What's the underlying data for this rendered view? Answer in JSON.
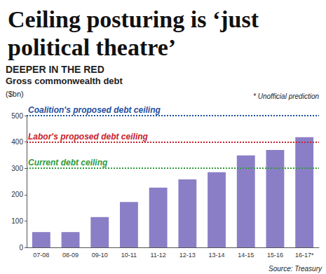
{
  "chart_data": {
    "type": "bar",
    "title": "Ceiling posturing is ‘just political theatre’",
    "subtitle": [
      "DEEPER IN THE RED",
      "Gross commonwealth debt"
    ],
    "ylabel": "($bn)",
    "note": "* Unofficial prediction",
    "source": "Source: Treasury",
    "categories": [
      "07-08",
      "08-09",
      "09-10",
      "10-11",
      "11-12",
      "12-13",
      "13-14",
      "14-15",
      "15-16",
      "16-17*"
    ],
    "values": [
      58,
      58,
      115,
      172,
      227,
      258,
      285,
      349,
      370,
      418
    ],
    "color": "#8a7fc6",
    "ylim": [
      0,
      500
    ],
    "yticks": [
      0,
      100,
      200,
      300,
      400,
      500
    ],
    "grid": false,
    "reference_lines": [
      {
        "value": 500,
        "label": "Coalition's proposed debt ceiling",
        "color": "#1f4f9e"
      },
      {
        "value": 400,
        "label": "Labor's proposed debt ceiling",
        "color": "#c8202a"
      },
      {
        "value": 300,
        "label": "Current debt ceiling",
        "color": "#2e9a3a"
      }
    ]
  }
}
